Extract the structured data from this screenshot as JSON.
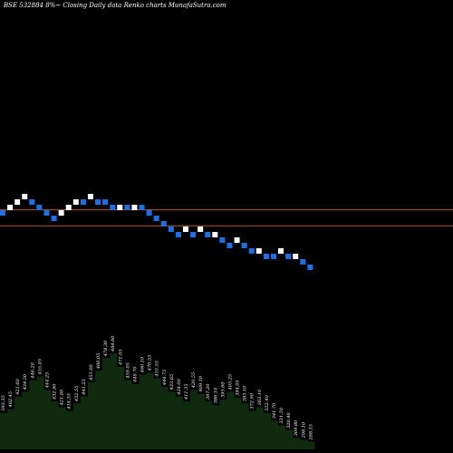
{
  "header": {
    "title": "BSE 532884  8%~  Closing Daily data  Renko  charts MunafaSutra.com"
  },
  "chart_data": {
    "type": "renko",
    "title": "BSE 532884  8%~  Closing Daily data  Renko  charts MunafaSutra.com",
    "colors": {
      "up_brick": "#ffffff",
      "down_brick": "#1e6fe6",
      "reference_line": "#b8591f",
      "volume_fill": "#0f2a0f",
      "background": "#000000"
    },
    "reference_lines": [
      {
        "name": "upper",
        "level": 0.79
      },
      {
        "name": "lower",
        "level": 0.58
      }
    ],
    "bricks": [
      {
        "dir": "down",
        "level": 10
      },
      {
        "dir": "up",
        "level": 11
      },
      {
        "dir": "up",
        "level": 12
      },
      {
        "dir": "up",
        "level": 13
      },
      {
        "dir": "down",
        "level": 12
      },
      {
        "dir": "down",
        "level": 11
      },
      {
        "dir": "down",
        "level": 10
      },
      {
        "dir": "down",
        "level": 9
      },
      {
        "dir": "up",
        "level": 10
      },
      {
        "dir": "up",
        "level": 11
      },
      {
        "dir": "up",
        "level": 12
      },
      {
        "dir": "down",
        "level": 12
      },
      {
        "dir": "up",
        "level": 13
      },
      {
        "dir": "down",
        "level": 12
      },
      {
        "dir": "down",
        "level": 12
      },
      {
        "dir": "down",
        "level": 11
      },
      {
        "dir": "up",
        "level": 11
      },
      {
        "dir": "down",
        "level": 11
      },
      {
        "dir": "up",
        "level": 11
      },
      {
        "dir": "down",
        "level": 11
      },
      {
        "dir": "down",
        "level": 10
      },
      {
        "dir": "down",
        "level": 9
      },
      {
        "dir": "down",
        "level": 8
      },
      {
        "dir": "down",
        "level": 7
      },
      {
        "dir": "down",
        "level": 6
      },
      {
        "dir": "up",
        "level": 7
      },
      {
        "dir": "down",
        "level": 6
      },
      {
        "dir": "up",
        "level": 7
      },
      {
        "dir": "down",
        "level": 6
      },
      {
        "dir": "up",
        "level": 6
      },
      {
        "dir": "down",
        "level": 5
      },
      {
        "dir": "down",
        "level": 4
      },
      {
        "dir": "up",
        "level": 5
      },
      {
        "dir": "down",
        "level": 4
      },
      {
        "dir": "down",
        "level": 3
      },
      {
        "dir": "up",
        "level": 3
      },
      {
        "dir": "down",
        "level": 2
      },
      {
        "dir": "down",
        "level": 2
      },
      {
        "dir": "up",
        "level": 3
      },
      {
        "dir": "down",
        "level": 2
      },
      {
        "dir": "up",
        "level": 2
      },
      {
        "dir": "down",
        "level": 1
      },
      {
        "dir": "down",
        "level": 0
      }
    ],
    "volume_profile": [
      0.38,
      0.42,
      0.55,
      0.6,
      0.72,
      0.76,
      0.62,
      0.5,
      0.44,
      0.4,
      0.48,
      0.55,
      0.7,
      0.82,
      0.95,
      1.0,
      0.86,
      0.72,
      0.68,
      0.78,
      0.8,
      0.74,
      0.65,
      0.6,
      0.55,
      0.5,
      0.62,
      0.58,
      0.5,
      0.46,
      0.52,
      0.6,
      0.54,
      0.48,
      0.4,
      0.44,
      0.38,
      0.3,
      0.25,
      0.2,
      0.12,
      0.1,
      0.08
    ],
    "value_labels": [
      "393.35",
      "402.45",
      "421.60",
      "434.50",
      "446.20",
      "455.05",
      "444.25",
      "432.90",
      "421.80",
      "414.35",
      "432.55",
      "441.25",
      "455.00",
      "466.05",
      "478.30",
      "484.60",
      "471.05",
      "459.05",
      "448.70",
      "460.10",
      "470.55",
      "455.55",
      "444.75",
      "433.65",
      "424.00",
      "411.35",
      "420.55",
      "409.10",
      "397.20",
      "386.10",
      "395.60",
      "405.25",
      "394.05",
      "383.10",
      "372.90",
      "363.10",
      "352.40",
      "341.70",
      "331.50",
      "320.40",
      "309.80",
      "298.10",
      "288.15"
    ]
  }
}
